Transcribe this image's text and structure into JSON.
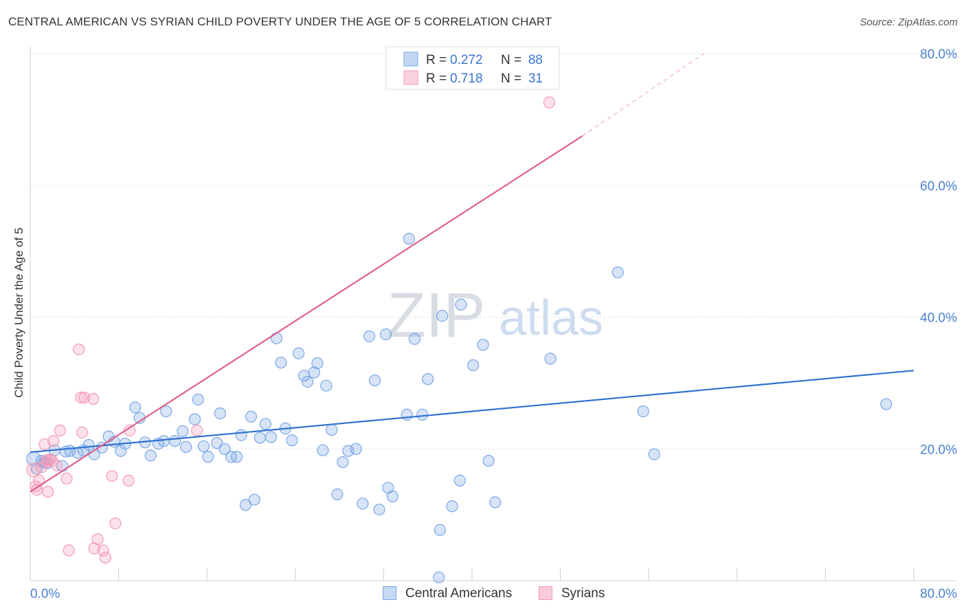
{
  "chart_data": {
    "type": "scatter",
    "title": "CENTRAL AMERICAN VS SYRIAN CHILD POVERTY UNDER THE AGE OF 5 CORRELATION CHART",
    "source": "Source: ZipAtlas.com",
    "ylabel": "Child Poverty Under the Age of 5",
    "xlabel": "",
    "xlim": [
      0,
      80
    ],
    "ylim": [
      0,
      80
    ],
    "x_tick_labels": [
      "0.0%",
      "80.0%"
    ],
    "y_tick_labels": [
      "20.0%",
      "40.0%",
      "60.0%",
      "80.0%"
    ],
    "y_tick_values": [
      20,
      40,
      60,
      80
    ],
    "watermark": {
      "zip": "ZIP",
      "atlas": "atlas"
    },
    "legend": {
      "r_label": "R =",
      "n_label": "N =",
      "entries": [
        {
          "r": "0.272",
          "n": "88"
        },
        {
          "r": "0.718",
          "n": "31"
        }
      ]
    },
    "series": [
      {
        "name": "Central Americans",
        "color": "#7aa7e6",
        "line_color": "#2f72d0",
        "trend": {
          "x": [
            0,
            80
          ],
          "y": [
            19.5,
            31.9
          ]
        },
        "points": [
          [
            0.3,
            18.5
          ],
          [
            0.6,
            17.0
          ],
          [
            1.0,
            18.2
          ],
          [
            1.2,
            18.0
          ],
          [
            1.5,
            17.8
          ],
          [
            1.8,
            18.4
          ],
          [
            2.2,
            19.8
          ],
          [
            2.9,
            17.4
          ],
          [
            3.2,
            19.6
          ],
          [
            3.6,
            19.7
          ],
          [
            4.3,
            19.4
          ],
          [
            4.8,
            19.8
          ],
          [
            5.3,
            20.6
          ],
          [
            5.8,
            19.2
          ],
          [
            6.5,
            20.2
          ],
          [
            7.1,
            21.9
          ],
          [
            7.6,
            21.1
          ],
          [
            8.2,
            19.7
          ],
          [
            8.6,
            20.8
          ],
          [
            9.5,
            26.3
          ],
          [
            9.9,
            24.7
          ],
          [
            10.4,
            21.0
          ],
          [
            10.9,
            19.0
          ],
          [
            11.6,
            20.8
          ],
          [
            12.1,
            21.2
          ],
          [
            12.3,
            25.7
          ],
          [
            13.1,
            21.2
          ],
          [
            13.8,
            22.7
          ],
          [
            14.1,
            20.3
          ],
          [
            14.9,
            24.5
          ],
          [
            15.2,
            27.5
          ],
          [
            15.7,
            20.4
          ],
          [
            16.1,
            18.8
          ],
          [
            16.9,
            20.9
          ],
          [
            17.2,
            25.4
          ],
          [
            17.6,
            20.0
          ],
          [
            18.2,
            18.8
          ],
          [
            18.7,
            18.8
          ],
          [
            19.1,
            22.1
          ],
          [
            19.5,
            11.5
          ],
          [
            20.0,
            24.9
          ],
          [
            20.3,
            12.3
          ],
          [
            20.8,
            21.7
          ],
          [
            21.3,
            23.8
          ],
          [
            21.8,
            21.8
          ],
          [
            22.3,
            36.8
          ],
          [
            22.7,
            33.1
          ],
          [
            23.1,
            23.1
          ],
          [
            23.7,
            21.3
          ],
          [
            24.3,
            34.5
          ],
          [
            24.8,
            31.1
          ],
          [
            25.1,
            30.2
          ],
          [
            25.7,
            31.6
          ],
          [
            26.0,
            33.0
          ],
          [
            26.8,
            29.6
          ],
          [
            26.5,
            19.8
          ],
          [
            27.3,
            22.9
          ],
          [
            27.8,
            13.1
          ],
          [
            28.3,
            18.0
          ],
          [
            28.8,
            19.7
          ],
          [
            29.5,
            20.0
          ],
          [
            30.1,
            11.7
          ],
          [
            30.7,
            37.1
          ],
          [
            31.2,
            30.4
          ],
          [
            31.6,
            10.8
          ],
          [
            32.2,
            37.4
          ],
          [
            32.4,
            14.1
          ],
          [
            32.8,
            12.8
          ],
          [
            34.1,
            25.2
          ],
          [
            34.3,
            51.9
          ],
          [
            34.8,
            36.7
          ],
          [
            35.5,
            25.2
          ],
          [
            36.0,
            30.6
          ],
          [
            37.1,
            7.7
          ],
          [
            37.3,
            40.2
          ],
          [
            38.2,
            11.3
          ],
          [
            39.0,
            41.9
          ],
          [
            38.9,
            15.2
          ],
          [
            40.1,
            32.7
          ],
          [
            41.0,
            35.8
          ],
          [
            41.5,
            18.2
          ],
          [
            42.1,
            11.9
          ],
          [
            47.1,
            33.7
          ],
          [
            53.2,
            46.8
          ],
          [
            55.5,
            25.7
          ],
          [
            56.5,
            19.2
          ],
          [
            77.5,
            26.8
          ],
          [
            37.0,
            0.5
          ]
        ]
      },
      {
        "name": "Syrians",
        "color": "#f49ab8",
        "line_color": "#e0608a",
        "trend": {
          "x": [
            0,
            50
          ],
          "y": [
            13.5,
            67.5
          ]
        },
        "trend_dashed": {
          "x": [
            50,
            61
          ],
          "y": [
            67.5,
            80.0
          ]
        },
        "points": [
          [
            0.3,
            16.8
          ],
          [
            0.5,
            14.3
          ],
          [
            0.6,
            13.8
          ],
          [
            0.8,
            15.2
          ],
          [
            1.0,
            17.2
          ],
          [
            1.3,
            20.7
          ],
          [
            1.5,
            18.3
          ],
          [
            1.6,
            13.5
          ],
          [
            2.0,
            18.2
          ],
          [
            2.1,
            21.2
          ],
          [
            2.4,
            17.5
          ],
          [
            2.7,
            22.8
          ],
          [
            3.3,
            15.5
          ],
          [
            3.5,
            4.6
          ],
          [
            4.4,
            35.1
          ],
          [
            4.6,
            27.8
          ],
          [
            4.7,
            22.5
          ],
          [
            4.9,
            27.8
          ],
          [
            5.7,
            27.6
          ],
          [
            5.8,
            4.9
          ],
          [
            6.1,
            6.3
          ],
          [
            6.6,
            4.6
          ],
          [
            6.8,
            3.5
          ],
          [
            7.4,
            15.9
          ],
          [
            7.7,
            8.7
          ],
          [
            8.9,
            15.2
          ],
          [
            9.0,
            22.8
          ],
          [
            15.1,
            22.8
          ],
          [
            47.0,
            72.6
          ],
          [
            1.5,
            18.0
          ],
          [
            1.8,
            18.4
          ]
        ]
      }
    ]
  }
}
